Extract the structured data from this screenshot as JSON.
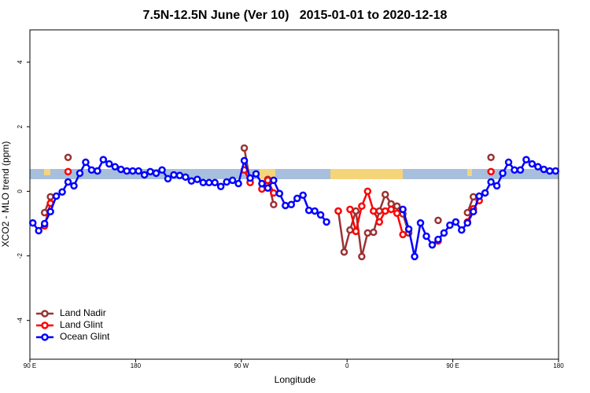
{
  "chart_data": {
    "type": "line",
    "title": "7.5N-12.5N June (Ver 10)   2015-01-01 to 2020-12-18",
    "xlabel": "Longitude",
    "ylabel": "XCO2 - MLO trend (ppm)",
    "xlim": [
      90,
      540
    ],
    "ylim": [
      -5.2,
      5
    ],
    "xticks": [
      {
        "value": 90,
        "label": "90 E"
      },
      180,
      {
        "value": 270,
        "label": "90 W"
      },
      {
        "value": 360,
        "label": "0"
      },
      {
        "value": 450,
        "label": "90 E"
      },
      {
        "value": 540,
        "label": "180"
      }
    ],
    "yticks": [
      -4,
      -2,
      0,
      2,
      4
    ],
    "legend": "bottom-left",
    "x": [
      92.5,
      97.5,
      102.5,
      107.5,
      112.5,
      117.5,
      122.5,
      127.5,
      132.5,
      137.5,
      142.5,
      147.5,
      152.5,
      157.5,
      162.5,
      167.5,
      172.5,
      177.5,
      182.5,
      187.5,
      192.5,
      197.5,
      202.5,
      207.5,
      212.5,
      217.5,
      222.5,
      227.5,
      232.5,
      237.5,
      242.5,
      247.5,
      252.5,
      257.5,
      262.5,
      267.5,
      272.5,
      277.5,
      282.5,
      287.5,
      292.5,
      297.5,
      302.5,
      307.5,
      312.5,
      317.5,
      322.5,
      327.5,
      332.5,
      337.5,
      342.5,
      347.5,
      352.5,
      357.5,
      362.5,
      367.5,
      372.5,
      377.5,
      382.5,
      387.5,
      392.5,
      397.5,
      402.5,
      407.5,
      412.5,
      417.5,
      422.5,
      427.5,
      432.5,
      437.5,
      442.5,
      447.5,
      452.5,
      457.5,
      462.5,
      467.5,
      472.5,
      477.5,
      482.5,
      487.5,
      492.5,
      497.5,
      502.5,
      507.5,
      512.5,
      517.5,
      522.5,
      527.5,
      532.5,
      537.5
    ],
    "series": [
      {
        "name": "Land Nadir",
        "color": "#993333",
        "values": [
          null,
          null,
          -0.66,
          -0.17,
          null,
          null,
          1.05,
          null,
          null,
          null,
          null,
          null,
          null,
          null,
          null,
          null,
          null,
          null,
          null,
          null,
          null,
          null,
          null,
          null,
          null,
          null,
          null,
          null,
          null,
          null,
          null,
          null,
          null,
          null,
          null,
          null,
          1.34,
          0.29,
          null,
          null,
          0.37,
          -0.41,
          null,
          null,
          null,
          null,
          null,
          null,
          null,
          null,
          null,
          null,
          -0.61,
          -1.88,
          -1.2,
          -0.61,
          -2.02,
          -1.29,
          -1.27,
          -0.61,
          -0.1,
          -0.39,
          -0.46,
          -0.7,
          -1.29,
          null,
          null,
          null,
          null,
          -0.9,
          null,
          null,
          null,
          null,
          -0.66,
          -0.17,
          null,
          null,
          1.05,
          null,
          null,
          null,
          null,
          null,
          null,
          null,
          null,
          null,
          null,
          null
        ]
      },
      {
        "name": "Land Glint",
        "color": "#ff0000",
        "values": [
          null,
          null,
          -1.07,
          -0.37,
          null,
          null,
          0.61,
          null,
          null,
          null,
          null,
          null,
          null,
          null,
          null,
          null,
          null,
          null,
          null,
          null,
          null,
          null,
          null,
          null,
          null,
          null,
          null,
          null,
          null,
          null,
          null,
          null,
          null,
          null,
          null,
          null,
          0.66,
          0.27,
          null,
          0.07,
          0.34,
          -0.05,
          null,
          null,
          null,
          null,
          null,
          null,
          null,
          null,
          null,
          null,
          -0.61,
          null,
          -0.56,
          -1.24,
          -0.46,
          0.0,
          -0.61,
          -0.95,
          -0.61,
          -0.56,
          -0.68,
          -1.34,
          null,
          null,
          null,
          null,
          null,
          -1.54,
          null,
          null,
          null,
          null,
          -0.95,
          -0.54,
          -0.29,
          null,
          0.61,
          null,
          null,
          null,
          null,
          null,
          null,
          null,
          null,
          null,
          null,
          null
        ]
      },
      {
        "name": "Ocean Glint",
        "color": "#0000ff",
        "values": [
          -0.98,
          -1.22,
          -1.0,
          -0.63,
          -0.15,
          -0.02,
          0.29,
          0.17,
          0.56,
          0.9,
          0.66,
          0.63,
          0.98,
          0.85,
          0.76,
          0.68,
          0.63,
          0.63,
          0.63,
          0.51,
          0.61,
          0.56,
          0.66,
          0.39,
          0.51,
          0.49,
          0.44,
          0.32,
          0.37,
          0.27,
          0.27,
          0.27,
          0.15,
          0.29,
          0.34,
          0.24,
          0.95,
          0.41,
          0.54,
          0.24,
          0.1,
          0.34,
          -0.07,
          -0.44,
          -0.41,
          -0.22,
          -0.12,
          -0.59,
          -0.61,
          -0.73,
          -0.95,
          null,
          null,
          null,
          null,
          null,
          null,
          null,
          null,
          null,
          null,
          null,
          null,
          -0.56,
          -1.17,
          -2.02,
          -0.98,
          -1.39,
          -1.66,
          -1.49,
          -1.29,
          -1.05,
          -0.95,
          -1.2,
          -0.98,
          -0.63,
          -0.15,
          -0.05,
          0.29,
          0.17,
          0.56,
          0.9,
          0.66,
          0.66,
          0.98,
          0.85,
          0.76,
          0.68,
          0.63,
          0.63
        ]
      }
    ]
  }
}
